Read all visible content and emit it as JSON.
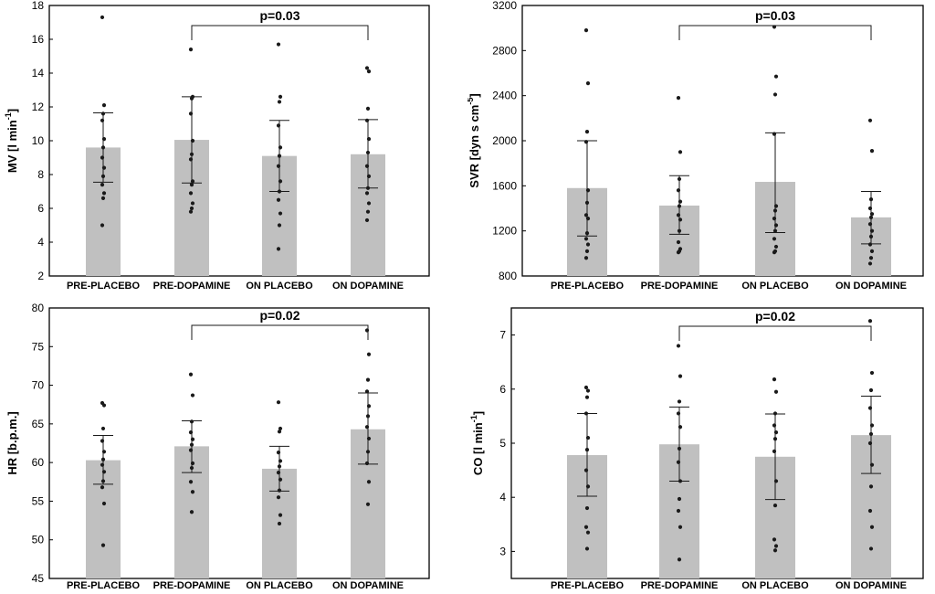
{
  "colors": {
    "bar": "#c0c0c0",
    "marks": "#1a1a1a",
    "frame": "#000000"
  },
  "categories": [
    "PRE-PLACEBO",
    "PRE-DOPAMINE",
    "ON PLACEBO",
    "ON DOPAMINE"
  ],
  "chart_data": [
    {
      "type": "bar",
      "id": "mv",
      "ylabel": "MV [l min",
      "ylabel_sup": "-1",
      "ylabel_close": "]",
      "ylim": [
        2,
        18
      ],
      "yticks": [
        2,
        4,
        6,
        8,
        10,
        12,
        14,
        16,
        18
      ],
      "categories": [
        "PRE-PLACEBO",
        "PRE-DOPAMINE",
        "ON PLACEBO",
        "ON DOPAMINE"
      ],
      "values": [
        9.6,
        10.05,
        9.1,
        9.2
      ],
      "error_low": [
        7.55,
        7.5,
        7.0,
        7.2
      ],
      "error_high": [
        11.65,
        12.6,
        11.2,
        11.25
      ],
      "points": [
        [
          17.3,
          12.1,
          11.6,
          11.2,
          10.1,
          9.6,
          9.0,
          8.4,
          7.9,
          7.4,
          6.9,
          6.6,
          5.0
        ],
        [
          15.4,
          12.6,
          12.5,
          11.6,
          10.0,
          9.2,
          8.9,
          7.6,
          7.4,
          6.9,
          6.3,
          6.0,
          5.8
        ],
        [
          15.7,
          12.6,
          12.3,
          10.9,
          9.6,
          9.1,
          8.5,
          7.6,
          7.0,
          6.5,
          5.7,
          5.0,
          3.6
        ],
        [
          14.3,
          14.1,
          11.9,
          11.2,
          10.1,
          9.3,
          8.5,
          7.9,
          7.2,
          6.9,
          6.3,
          5.8,
          5.3
        ]
      ],
      "significance": {
        "label": "p=0.03",
        "from": 1,
        "to": 3
      }
    },
    {
      "type": "bar",
      "id": "svr",
      "ylabel": "SVR [dyn s cm",
      "ylabel_sup": "-5",
      "ylabel_close": "]",
      "ylim": [
        800,
        3200
      ],
      "yticks": [
        800,
        1200,
        1600,
        2000,
        2400,
        2800,
        3200
      ],
      "categories": [
        "PRE-PLACEBO",
        "PRE-DOPAMINE",
        "ON PLACEBO",
        "ON DOPAMINE"
      ],
      "values": [
        1580,
        1425,
        1635,
        1320
      ],
      "error_low": [
        1155,
        1170,
        1185,
        1085
      ],
      "error_high": [
        2000,
        1690,
        2070,
        1550
      ],
      "points": [
        [
          2980,
          2510,
          2080,
          1990,
          1560,
          1450,
          1340,
          1310,
          1180,
          1130,
          1080,
          1020,
          960
        ],
        [
          2380,
          1900,
          1660,
          1560,
          1460,
          1420,
          1340,
          1300,
          1200,
          1100,
          1040,
          1020,
          1010
        ],
        [
          3010,
          2570,
          2410,
          2060,
          1420,
          1380,
          1310,
          1250,
          1200,
          1130,
          1060,
          1020,
          1010
        ],
        [
          2180,
          1910,
          1480,
          1400,
          1350,
          1320,
          1260,
          1200,
          1150,
          1080,
          1020,
          960,
          910
        ]
      ],
      "significance": {
        "label": "p=0.03",
        "from": 1,
        "to": 3
      }
    },
    {
      "type": "bar",
      "id": "hr",
      "ylabel": "HR [b.p.m.]",
      "ylabel_sup": "",
      "ylabel_close": "",
      "ylim": [
        45,
        80
      ],
      "yticks": [
        45,
        50,
        55,
        60,
        65,
        70,
        75,
        80
      ],
      "categories": [
        "PRE-PLACEBO",
        "PRE-DOPAMINE",
        "ON PLACEBO",
        "ON DOPAMINE"
      ],
      "values": [
        60.3,
        62.1,
        59.2,
        64.3
      ],
      "error_low": [
        57.2,
        58.7,
        56.3,
        59.8
      ],
      "error_high": [
        63.5,
        65.4,
        62.1,
        69.0
      ],
      "points": [
        [
          67.7,
          67.4,
          64.4,
          62.8,
          61.4,
          60.4,
          59.7,
          58.8,
          57.6,
          56.8,
          54.7,
          49.3
        ],
        [
          71.4,
          68.7,
          65.3,
          63.9,
          63.0,
          62.3,
          61.6,
          59.9,
          59.3,
          57.5,
          56.2,
          53.6
        ],
        [
          67.8,
          64.4,
          64.0,
          61.3,
          60.2,
          59.5,
          58.7,
          57.8,
          56.4,
          55.5,
          53.2,
          52.1
        ],
        [
          77.1,
          74.0,
          70.7,
          69.2,
          67.3,
          66.0,
          64.6,
          63.1,
          61.4,
          59.9,
          57.5,
          54.6
        ]
      ],
      "significance": {
        "label": "p=0.02",
        "from": 1,
        "to": 3
      }
    },
    {
      "type": "bar",
      "id": "co",
      "ylabel": "CO [l min",
      "ylabel_sup": "-1",
      "ylabel_close": "]",
      "ylim": [
        2.5,
        7.5
      ],
      "yticks": [
        3,
        4,
        5,
        6,
        7
      ],
      "categories": [
        "PRE-PLACEBO",
        "PRE-DOPAMINE",
        "ON PLACEBO",
        "ON DOPAMINE"
      ],
      "values": [
        4.78,
        4.98,
        4.75,
        5.15
      ],
      "error_low": [
        4.02,
        4.3,
        3.96,
        4.44
      ],
      "error_high": [
        5.55,
        5.67,
        5.54,
        5.87
      ],
      "points": [
        [
          6.03,
          5.97,
          5.85,
          5.55,
          5.1,
          4.88,
          4.5,
          4.2,
          3.8,
          3.45,
          3.35,
          3.05
        ],
        [
          6.8,
          6.24,
          5.77,
          5.55,
          5.3,
          4.9,
          4.65,
          4.3,
          3.97,
          3.75,
          3.45,
          2.85
        ],
        [
          6.18,
          5.95,
          5.55,
          5.33,
          5.2,
          5.08,
          4.85,
          4.3,
          3.85,
          3.22,
          3.1,
          3.02
        ],
        [
          7.26,
          6.3,
          5.98,
          5.65,
          5.33,
          5.17,
          5.0,
          4.6,
          4.2,
          3.75,
          3.45,
          3.05
        ]
      ],
      "significance": {
        "label": "p=0.02",
        "from": 1,
        "to": 3
      }
    }
  ]
}
